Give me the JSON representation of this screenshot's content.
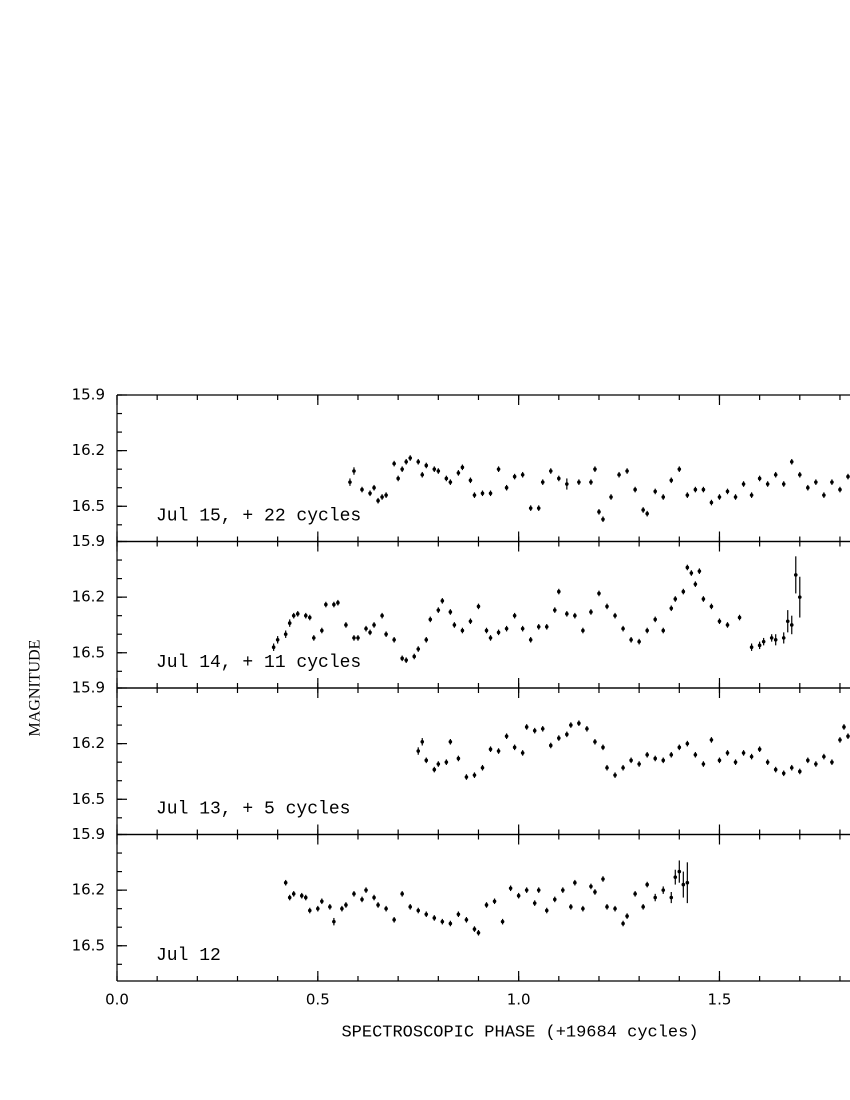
{
  "chart_data": [
    {
      "type": "scatter",
      "annotation": "Jul 15, + 22 cycles",
      "x": [
        0.58,
        0.59,
        0.61,
        0.63,
        0.64,
        0.65,
        0.66,
        0.67,
        0.69,
        0.7,
        0.71,
        0.72,
        0.73,
        0.75,
        0.76,
        0.77,
        0.79,
        0.8,
        0.82,
        0.83,
        0.85,
        0.86,
        0.88,
        0.89,
        0.91,
        0.93,
        0.95,
        0.97,
        0.99,
        1.01,
        1.03,
        1.05,
        1.06,
        1.08,
        1.1,
        1.12,
        1.15,
        1.18,
        1.19,
        1.2,
        1.21,
        1.23,
        1.25,
        1.27,
        1.29,
        1.31,
        1.32,
        1.34,
        1.36,
        1.38,
        1.4,
        1.42,
        1.44,
        1.46,
        1.48,
        1.5,
        1.52,
        1.54,
        1.56,
        1.58,
        1.6,
        1.62,
        1.64,
        1.66,
        1.68,
        1.7,
        1.72,
        1.74,
        1.76,
        1.78,
        1.8,
        1.82
      ],
      "y": [
        16.37,
        16.31,
        16.41,
        16.43,
        16.4,
        16.47,
        16.45,
        16.44,
        16.27,
        16.35,
        16.3,
        16.26,
        16.24,
        16.26,
        16.33,
        16.28,
        16.3,
        16.31,
        16.35,
        16.37,
        16.32,
        16.29,
        16.36,
        16.44,
        16.43,
        16.43,
        16.3,
        16.4,
        16.34,
        16.33,
        16.51,
        16.51,
        16.37,
        16.31,
        16.35,
        16.38,
        16.37,
        16.37,
        16.3,
        16.53,
        16.57,
        16.45,
        16.33,
        16.31,
        16.41,
        16.52,
        16.54,
        16.42,
        16.45,
        16.36,
        16.3,
        16.44,
        16.41,
        16.41,
        16.48,
        16.45,
        16.42,
        16.45,
        16.38,
        16.44,
        16.35,
        16.38,
        16.33,
        16.38,
        16.26,
        16.33,
        16.4,
        16.37,
        16.44,
        16.37,
        16.41,
        16.34
      ],
      "yerr": [
        0.02,
        0.02,
        0.015,
        0.015,
        0.015,
        0.015,
        0.015,
        0.015,
        0.015,
        0.015,
        0.015,
        0.015,
        0.015,
        0.015,
        0.015,
        0.015,
        0.015,
        0.015,
        0.015,
        0.015,
        0.015,
        0.015,
        0.015,
        0.015,
        0.015,
        0.015,
        0.015,
        0.015,
        0.015,
        0.015,
        0.015,
        0.015,
        0.015,
        0.015,
        0.015,
        0.03,
        0.015,
        0.015,
        0.015,
        0.015,
        0.015,
        0.015,
        0.015,
        0.015,
        0.015,
        0.015,
        0.015,
        0.015,
        0.015,
        0.015,
        0.015,
        0.015,
        0.015,
        0.015,
        0.015,
        0.015,
        0.015,
        0.015,
        0.015,
        0.015,
        0.015,
        0.015,
        0.015,
        0.015,
        0.015,
        0.015,
        0.015,
        0.015,
        0.015,
        0.015,
        0.015,
        0.015
      ],
      "ylim": [
        15.9,
        16.69
      ],
      "yticks": [
        15.9,
        16.2,
        16.5
      ]
    },
    {
      "type": "scatter",
      "annotation": "Jul 14, + 11 cycles",
      "x": [
        0.39,
        0.4,
        0.42,
        0.43,
        0.44,
        0.45,
        0.47,
        0.48,
        0.49,
        0.51,
        0.52,
        0.54,
        0.55,
        0.57,
        0.59,
        0.6,
        0.62,
        0.63,
        0.64,
        0.66,
        0.67,
        0.69,
        0.71,
        0.72,
        0.74,
        0.75,
        0.77,
        0.78,
        0.8,
        0.81,
        0.83,
        0.84,
        0.86,
        0.88,
        0.9,
        0.92,
        0.93,
        0.95,
        0.97,
        0.99,
        1.01,
        1.03,
        1.05,
        1.07,
        1.09,
        1.1,
        1.12,
        1.14,
        1.16,
        1.18,
        1.2,
        1.22,
        1.24,
        1.26,
        1.28,
        1.3,
        1.32,
        1.34,
        1.36,
        1.38,
        1.39,
        1.41,
        1.42,
        1.43,
        1.44,
        1.45,
        1.46,
        1.48,
        1.5,
        1.52,
        1.55,
        1.58,
        1.6,
        1.61,
        1.63,
        1.64,
        1.66,
        1.67,
        1.68,
        1.69,
        1.7
      ],
      "y": [
        16.47,
        16.43,
        16.4,
        16.34,
        16.3,
        16.29,
        16.3,
        16.31,
        16.42,
        16.38,
        16.24,
        16.24,
        16.23,
        16.35,
        16.42,
        16.42,
        16.37,
        16.39,
        16.35,
        16.3,
        16.4,
        16.43,
        16.53,
        16.54,
        16.52,
        16.48,
        16.43,
        16.32,
        16.27,
        16.22,
        16.28,
        16.35,
        16.38,
        16.33,
        16.25,
        16.38,
        16.42,
        16.39,
        16.37,
        16.3,
        16.37,
        16.43,
        16.36,
        16.36,
        16.27,
        16.17,
        16.29,
        16.3,
        16.38,
        16.28,
        16.18,
        16.25,
        16.3,
        16.37,
        16.43,
        16.44,
        16.38,
        16.32,
        16.38,
        16.26,
        16.21,
        16.17,
        16.04,
        16.07,
        16.13,
        16.06,
        16.21,
        16.25,
        16.33,
        16.35,
        16.31,
        16.47,
        16.46,
        16.44,
        16.42,
        16.43,
        16.42,
        16.33,
        16.35,
        16.08,
        16.2
      ],
      "yerr": [
        0.02,
        0.02,
        0.02,
        0.02,
        0.015,
        0.015,
        0.015,
        0.015,
        0.015,
        0.015,
        0.015,
        0.015,
        0.015,
        0.015,
        0.015,
        0.015,
        0.015,
        0.015,
        0.015,
        0.015,
        0.015,
        0.015,
        0.015,
        0.015,
        0.015,
        0.015,
        0.015,
        0.015,
        0.015,
        0.015,
        0.015,
        0.015,
        0.015,
        0.015,
        0.015,
        0.015,
        0.015,
        0.015,
        0.015,
        0.015,
        0.015,
        0.015,
        0.015,
        0.015,
        0.015,
        0.015,
        0.015,
        0.015,
        0.015,
        0.015,
        0.015,
        0.015,
        0.015,
        0.015,
        0.015,
        0.015,
        0.015,
        0.015,
        0.015,
        0.015,
        0.015,
        0.015,
        0.015,
        0.015,
        0.015,
        0.015,
        0.015,
        0.015,
        0.015,
        0.015,
        0.015,
        0.02,
        0.02,
        0.02,
        0.02,
        0.03,
        0.03,
        0.06,
        0.05,
        0.1,
        0.11
      ],
      "ylim": [
        15.9,
        16.69
      ],
      "yticks": [
        15.9,
        16.2,
        16.5
      ]
    },
    {
      "type": "scatter",
      "annotation": "Jul 13, + 5 cycles",
      "x": [
        0.75,
        0.76,
        0.77,
        0.79,
        0.8,
        0.82,
        0.83,
        0.85,
        0.87,
        0.89,
        0.91,
        0.93,
        0.95,
        0.97,
        0.99,
        1.01,
        1.02,
        1.04,
        1.06,
        1.08,
        1.1,
        1.12,
        1.13,
        1.15,
        1.17,
        1.19,
        1.21,
        1.22,
        1.24,
        1.26,
        1.28,
        1.3,
        1.32,
        1.34,
        1.36,
        1.38,
        1.4,
        1.42,
        1.44,
        1.46,
        1.48,
        1.5,
        1.52,
        1.54,
        1.56,
        1.58,
        1.6,
        1.62,
        1.64,
        1.66,
        1.68,
        1.7,
        1.72,
        1.74,
        1.76,
        1.78,
        1.8,
        1.81,
        1.82
      ],
      "y": [
        16.24,
        16.19,
        16.29,
        16.34,
        16.31,
        16.3,
        16.19,
        16.28,
        16.38,
        16.37,
        16.33,
        16.23,
        16.24,
        16.16,
        16.22,
        16.25,
        16.11,
        16.13,
        16.12,
        16.21,
        16.17,
        16.15,
        16.1,
        16.09,
        16.12,
        16.19,
        16.22,
        16.33,
        16.37,
        16.33,
        16.29,
        16.31,
        16.26,
        16.28,
        16.29,
        16.26,
        16.22,
        16.2,
        16.26,
        16.31,
        16.18,
        16.29,
        16.25,
        16.3,
        16.25,
        16.27,
        16.23,
        16.3,
        16.34,
        16.36,
        16.33,
        16.35,
        16.29,
        16.31,
        16.27,
        16.3,
        16.18,
        16.11,
        16.16
      ],
      "yerr": [
        0.02,
        0.02,
        0.015,
        0.015,
        0.015,
        0.015,
        0.015,
        0.015,
        0.015,
        0.015,
        0.015,
        0.015,
        0.015,
        0.015,
        0.015,
        0.015,
        0.015,
        0.015,
        0.015,
        0.015,
        0.015,
        0.015,
        0.015,
        0.015,
        0.015,
        0.015,
        0.015,
        0.015,
        0.015,
        0.015,
        0.015,
        0.015,
        0.015,
        0.015,
        0.015,
        0.015,
        0.015,
        0.015,
        0.015,
        0.015,
        0.015,
        0.015,
        0.015,
        0.015,
        0.015,
        0.015,
        0.015,
        0.015,
        0.015,
        0.015,
        0.015,
        0.015,
        0.015,
        0.015,
        0.015,
        0.015,
        0.015,
        0.015,
        0.015
      ],
      "ylim": [
        15.9,
        16.69
      ],
      "yticks": [
        15.9,
        16.2,
        16.5
      ]
    },
    {
      "type": "scatter",
      "annotation": "Jul 12",
      "x": [
        0.42,
        0.43,
        0.44,
        0.46,
        0.47,
        0.48,
        0.5,
        0.51,
        0.53,
        0.54,
        0.56,
        0.57,
        0.59,
        0.61,
        0.62,
        0.64,
        0.65,
        0.67,
        0.69,
        0.71,
        0.73,
        0.75,
        0.77,
        0.79,
        0.81,
        0.83,
        0.85,
        0.87,
        0.89,
        0.9,
        0.92,
        0.94,
        0.96,
        0.98,
        1.0,
        1.02,
        1.04,
        1.05,
        1.07,
        1.09,
        1.11,
        1.13,
        1.14,
        1.16,
        1.18,
        1.19,
        1.21,
        1.22,
        1.24,
        1.26,
        1.27,
        1.29,
        1.31,
        1.32,
        1.34,
        1.36,
        1.38,
        1.39,
        1.4,
        1.41,
        1.42
      ],
      "y": [
        16.16,
        16.24,
        16.22,
        16.23,
        16.24,
        16.31,
        16.3,
        16.26,
        16.29,
        16.37,
        16.3,
        16.28,
        16.22,
        16.25,
        16.2,
        16.24,
        16.28,
        16.3,
        16.36,
        16.22,
        16.29,
        16.31,
        16.33,
        16.35,
        16.37,
        16.38,
        16.33,
        16.36,
        16.41,
        16.43,
        16.28,
        16.26,
        16.37,
        16.19,
        16.23,
        16.2,
        16.27,
        16.2,
        16.31,
        16.25,
        16.2,
        16.29,
        16.16,
        16.3,
        16.18,
        16.21,
        16.14,
        16.29,
        16.3,
        16.38,
        16.34,
        16.22,
        16.29,
        16.17,
        16.24,
        16.2,
        16.24,
        16.13,
        16.1,
        16.17,
        16.16
      ],
      "yerr": [
        0.015,
        0.015,
        0.015,
        0.015,
        0.015,
        0.015,
        0.015,
        0.015,
        0.015,
        0.02,
        0.015,
        0.015,
        0.015,
        0.015,
        0.015,
        0.015,
        0.015,
        0.015,
        0.015,
        0.015,
        0.015,
        0.015,
        0.015,
        0.015,
        0.015,
        0.015,
        0.015,
        0.015,
        0.015,
        0.015,
        0.015,
        0.015,
        0.015,
        0.015,
        0.015,
        0.015,
        0.015,
        0.015,
        0.015,
        0.015,
        0.015,
        0.015,
        0.015,
        0.015,
        0.015,
        0.015,
        0.015,
        0.015,
        0.015,
        0.015,
        0.015,
        0.015,
        0.015,
        0.015,
        0.02,
        0.02,
        0.03,
        0.04,
        0.06,
        0.07,
        0.11
      ],
      "ylim": [
        15.9,
        16.69
      ],
      "yticks": [
        15.9,
        16.2,
        16.5
      ]
    }
  ],
  "axes": {
    "xlabel": "SPECTROSCOPIC PHASE (+19684 cycles)",
    "ylabel": "MAGNITUDE",
    "xlim": [
      0,
      1.825
    ],
    "xticks": [
      {
        "value": 0,
        "label": "0.0"
      },
      0.5,
      {
        "value": 1,
        "label": "1.0"
      },
      1.5
    ],
    "xminor_step": 0.1,
    "yminor_step": 0.1,
    "y_inverted": true
  }
}
